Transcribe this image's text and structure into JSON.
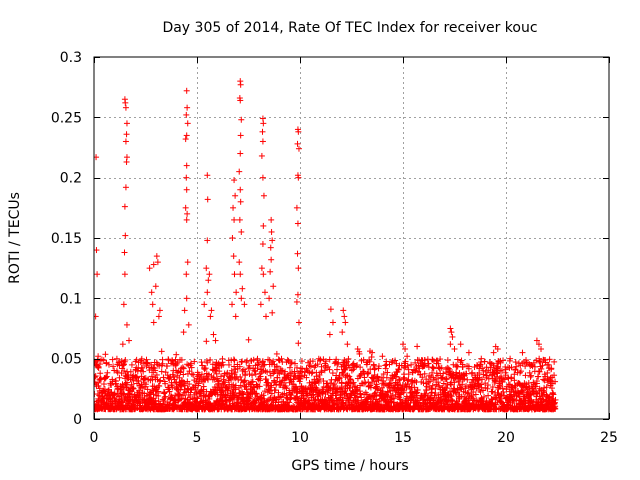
{
  "chart_data": {
    "type": "scatter",
    "title": "Day 305 of 2014, Rate Of TEC Index for receiver kouc",
    "xlabel": "GPS time / hours",
    "ylabel": "ROTI / TECUs",
    "xlim": [
      0,
      25
    ],
    "ylim": [
      0,
      0.3
    ],
    "xticks": [
      0,
      5,
      10,
      15,
      20,
      25
    ],
    "xtick_labels": [
      "0",
      "5",
      "10",
      "15",
      "20",
      "25"
    ],
    "yticks": [
      0,
      0.05,
      0.1,
      0.15,
      0.2,
      0.25,
      0.3
    ],
    "ytick_labels": [
      "0",
      "0.05",
      "0.1",
      "0.15",
      "0.2",
      "0.25",
      "0.3"
    ],
    "grid": true,
    "marker": "+",
    "color": "#ff0000",
    "data_range_hours": [
      0,
      22.4
    ],
    "series": [
      {
        "name": "ROTI",
        "points": [
          [
            0.1,
            0.217
          ],
          [
            0.12,
            0.14
          ],
          [
            0.15,
            0.12
          ],
          [
            0.08,
            0.085
          ],
          [
            0.2,
            0.052
          ],
          [
            1.5,
            0.265
          ],
          [
            1.52,
            0.262
          ],
          [
            1.55,
            0.258
          ],
          [
            1.6,
            0.245
          ],
          [
            1.58,
            0.236
          ],
          [
            1.55,
            0.23
          ],
          [
            1.6,
            0.217
          ],
          [
            1.58,
            0.213
          ],
          [
            1.55,
            0.192
          ],
          [
            1.5,
            0.176
          ],
          [
            1.52,
            0.152
          ],
          [
            1.48,
            0.138
          ],
          [
            1.5,
            0.12
          ],
          [
            1.45,
            0.095
          ],
          [
            1.6,
            0.078
          ],
          [
            1.7,
            0.065
          ],
          [
            1.4,
            0.062
          ],
          [
            2.7,
            0.125
          ],
          [
            2.9,
            0.128
          ],
          [
            3.05,
            0.135
          ],
          [
            3.1,
            0.13
          ],
          [
            2.8,
            0.105
          ],
          [
            3.0,
            0.11
          ],
          [
            3.2,
            0.09
          ],
          [
            2.85,
            0.095
          ],
          [
            3.15,
            0.085
          ],
          [
            2.9,
            0.08
          ],
          [
            4.5,
            0.272
          ],
          [
            4.52,
            0.258
          ],
          [
            4.48,
            0.252
          ],
          [
            4.55,
            0.245
          ],
          [
            4.5,
            0.235
          ],
          [
            4.45,
            0.232
          ],
          [
            4.5,
            0.21
          ],
          [
            4.48,
            0.2
          ],
          [
            4.5,
            0.19
          ],
          [
            4.45,
            0.175
          ],
          [
            4.52,
            0.17
          ],
          [
            4.5,
            0.165
          ],
          [
            4.55,
            0.13
          ],
          [
            4.48,
            0.12
          ],
          [
            4.5,
            0.1
          ],
          [
            4.4,
            0.09
          ],
          [
            4.6,
            0.078
          ],
          [
            4.35,
            0.072
          ],
          [
            5.5,
            0.202
          ],
          [
            5.52,
            0.182
          ],
          [
            5.5,
            0.148
          ],
          [
            5.45,
            0.125
          ],
          [
            5.6,
            0.12
          ],
          [
            5.55,
            0.115
          ],
          [
            5.5,
            0.105
          ],
          [
            5.35,
            0.095
          ],
          [
            5.7,
            0.09
          ],
          [
            5.65,
            0.085
          ],
          [
            5.8,
            0.07
          ],
          [
            5.9,
            0.065
          ],
          [
            6.8,
            0.198
          ],
          [
            6.85,
            0.185
          ],
          [
            6.75,
            0.175
          ],
          [
            6.8,
            0.165
          ],
          [
            6.72,
            0.15
          ],
          [
            6.78,
            0.135
          ],
          [
            6.82,
            0.12
          ],
          [
            6.9,
            0.105
          ],
          [
            6.7,
            0.095
          ],
          [
            6.88,
            0.085
          ],
          [
            7.1,
            0.28
          ],
          [
            7.12,
            0.277
          ],
          [
            7.08,
            0.266
          ],
          [
            7.1,
            0.264
          ],
          [
            7.15,
            0.248
          ],
          [
            7.12,
            0.235
          ],
          [
            7.1,
            0.22
          ],
          [
            7.05,
            0.205
          ],
          [
            7.1,
            0.19
          ],
          [
            7.12,
            0.18
          ],
          [
            7.08,
            0.165
          ],
          [
            7.15,
            0.155
          ],
          [
            7.05,
            0.13
          ],
          [
            7.1,
            0.12
          ],
          [
            7.2,
            0.108
          ],
          [
            7.15,
            0.1
          ],
          [
            7.3,
            0.095
          ],
          [
            8.2,
            0.249
          ],
          [
            8.22,
            0.245
          ],
          [
            8.18,
            0.238
          ],
          [
            8.2,
            0.23
          ],
          [
            8.15,
            0.218
          ],
          [
            8.2,
            0.2
          ],
          [
            8.25,
            0.185
          ],
          [
            8.22,
            0.16
          ],
          [
            8.2,
            0.145
          ],
          [
            8.15,
            0.125
          ],
          [
            8.22,
            0.12
          ],
          [
            8.3,
            0.105
          ],
          [
            8.1,
            0.095
          ],
          [
            8.35,
            0.085
          ],
          [
            8.6,
            0.165
          ],
          [
            8.62,
            0.155
          ],
          [
            8.65,
            0.148
          ],
          [
            8.58,
            0.142
          ],
          [
            8.6,
            0.132
          ],
          [
            8.55,
            0.122
          ],
          [
            8.7,
            0.11
          ],
          [
            8.5,
            0.1
          ],
          [
            8.65,
            0.088
          ],
          [
            9.9,
            0.24
          ],
          [
            9.92,
            0.238
          ],
          [
            9.88,
            0.228
          ],
          [
            9.95,
            0.224
          ],
          [
            9.9,
            0.202
          ],
          [
            9.92,
            0.2
          ],
          [
            9.85,
            0.175
          ],
          [
            9.9,
            0.162
          ],
          [
            9.88,
            0.137
          ],
          [
            9.92,
            0.125
          ],
          [
            9.9,
            0.103
          ],
          [
            9.85,
            0.097
          ],
          [
            9.95,
            0.08
          ],
          [
            11.5,
            0.091
          ],
          [
            11.6,
            0.08
          ],
          [
            11.45,
            0.07
          ],
          [
            12.1,
            0.09
          ],
          [
            12.15,
            0.085
          ],
          [
            12.2,
            0.08
          ],
          [
            12.05,
            0.072
          ],
          [
            12.3,
            0.062
          ],
          [
            12.8,
            0.058
          ],
          [
            13.5,
            0.055
          ],
          [
            14.0,
            0.052
          ],
          [
            14.5,
            0.048
          ],
          [
            15.0,
            0.062
          ],
          [
            15.1,
            0.058
          ],
          [
            15.2,
            0.052
          ],
          [
            16.0,
            0.045
          ],
          [
            16.5,
            0.048
          ],
          [
            17.3,
            0.075
          ],
          [
            17.35,
            0.072
          ],
          [
            17.4,
            0.068
          ],
          [
            17.3,
            0.062
          ],
          [
            17.5,
            0.058
          ],
          [
            17.8,
            0.062
          ],
          [
            18.2,
            0.055
          ],
          [
            18.8,
            0.05
          ],
          [
            19.5,
            0.06
          ],
          [
            19.6,
            0.058
          ],
          [
            19.4,
            0.055
          ],
          [
            20.2,
            0.05
          ],
          [
            20.8,
            0.055
          ],
          [
            21.5,
            0.065
          ],
          [
            21.6,
            0.062
          ],
          [
            21.7,
            0.058
          ],
          [
            22.0,
            0.045
          ],
          [
            22.2,
            0.042
          ]
        ]
      }
    ]
  }
}
